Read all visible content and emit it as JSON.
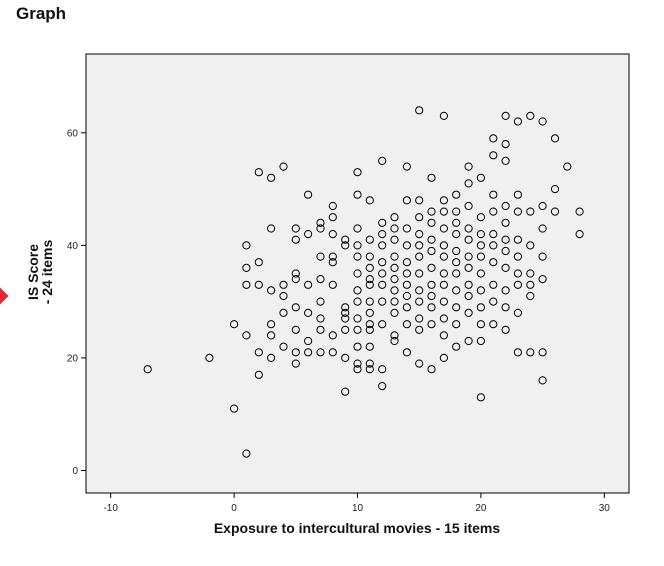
{
  "page": {
    "heading": "Graph",
    "marker_color": "#e8262e"
  },
  "chart_data": {
    "type": "scatter",
    "title": "",
    "xlabel": "Exposure to intercultural movies - 15 items",
    "ylabel_lines": [
      "IS Score",
      "- 24 items"
    ],
    "xlim": [
      -12,
      32
    ],
    "ylim": [
      -4,
      74
    ],
    "xticks": [
      -10,
      0,
      10,
      20,
      30
    ],
    "yticks": [
      0,
      20,
      40,
      60
    ],
    "grid": false,
    "plot_background": "#f0f0f0",
    "marker": "open-circle",
    "points": [
      [
        -7,
        18
      ],
      [
        -2,
        20
      ],
      [
        0,
        11
      ],
      [
        0,
        26
      ],
      [
        1,
        3
      ],
      [
        1,
        24
      ],
      [
        1,
        33
      ],
      [
        1,
        36
      ],
      [
        1,
        40
      ],
      [
        2,
        17
      ],
      [
        2,
        21
      ],
      [
        2,
        33
      ],
      [
        2,
        37
      ],
      [
        2,
        53
      ],
      [
        3,
        20
      ],
      [
        3,
        24
      ],
      [
        3,
        26
      ],
      [
        3,
        32
      ],
      [
        3,
        43
      ],
      [
        3,
        52
      ],
      [
        4,
        22
      ],
      [
        4,
        28
      ],
      [
        4,
        31
      ],
      [
        4,
        33
      ],
      [
        4,
        54
      ],
      [
        5,
        19
      ],
      [
        5,
        21
      ],
      [
        5,
        25
      ],
      [
        5,
        29
      ],
      [
        5,
        34
      ],
      [
        5,
        35
      ],
      [
        5,
        41
      ],
      [
        5,
        43
      ],
      [
        6,
        21
      ],
      [
        6,
        23
      ],
      [
        6,
        28
      ],
      [
        6,
        33
      ],
      [
        6,
        42
      ],
      [
        6,
        49
      ],
      [
        7,
        21
      ],
      [
        7,
        25
      ],
      [
        7,
        27
      ],
      [
        7,
        30
      ],
      [
        7,
        34
      ],
      [
        7,
        38
      ],
      [
        7,
        43
      ],
      [
        7,
        44
      ],
      [
        8,
        21
      ],
      [
        8,
        24
      ],
      [
        8,
        33
      ],
      [
        8,
        37
      ],
      [
        8,
        38
      ],
      [
        8,
        42
      ],
      [
        8,
        45
      ],
      [
        8,
        47
      ],
      [
        9,
        14
      ],
      [
        9,
        20
      ],
      [
        9,
        25
      ],
      [
        9,
        27
      ],
      [
        9,
        28
      ],
      [
        9,
        29
      ],
      [
        9,
        40
      ],
      [
        9,
        41
      ],
      [
        10,
        18
      ],
      [
        10,
        19
      ],
      [
        10,
        22
      ],
      [
        10,
        25
      ],
      [
        10,
        27
      ],
      [
        10,
        30
      ],
      [
        10,
        32
      ],
      [
        10,
        35
      ],
      [
        10,
        38
      ],
      [
        10,
        40
      ],
      [
        10,
        43
      ],
      [
        10,
        49
      ],
      [
        10,
        53
      ],
      [
        11,
        18
      ],
      [
        11,
        19
      ],
      [
        11,
        22
      ],
      [
        11,
        25
      ],
      [
        11,
        26
      ],
      [
        11,
        28
      ],
      [
        11,
        30
      ],
      [
        11,
        33
      ],
      [
        11,
        34
      ],
      [
        11,
        36
      ],
      [
        11,
        38
      ],
      [
        11,
        41
      ],
      [
        11,
        48
      ],
      [
        12,
        15
      ],
      [
        12,
        18
      ],
      [
        12,
        26
      ],
      [
        12,
        30
      ],
      [
        12,
        33
      ],
      [
        12,
        35
      ],
      [
        12,
        37
      ],
      [
        12,
        40
      ],
      [
        12,
        42
      ],
      [
        12,
        44
      ],
      [
        12,
        55
      ],
      [
        13,
        23
      ],
      [
        13,
        24
      ],
      [
        13,
        28
      ],
      [
        13,
        30
      ],
      [
        13,
        32
      ],
      [
        13,
        34
      ],
      [
        13,
        36
      ],
      [
        13,
        38
      ],
      [
        13,
        41
      ],
      [
        13,
        43
      ],
      [
        13,
        45
      ],
      [
        14,
        21
      ],
      [
        14,
        26
      ],
      [
        14,
        29
      ],
      [
        14,
        31
      ],
      [
        14,
        33
      ],
      [
        14,
        35
      ],
      [
        14,
        37
      ],
      [
        14,
        40
      ],
      [
        14,
        43
      ],
      [
        14,
        48
      ],
      [
        14,
        54
      ],
      [
        15,
        19
      ],
      [
        15,
        25
      ],
      [
        15,
        27
      ],
      [
        15,
        30
      ],
      [
        15,
        32
      ],
      [
        15,
        35
      ],
      [
        15,
        38
      ],
      [
        15,
        40
      ],
      [
        15,
        42
      ],
      [
        15,
        45
      ],
      [
        15,
        48
      ],
      [
        15,
        64
      ],
      [
        16,
        18
      ],
      [
        16,
        26
      ],
      [
        16,
        29
      ],
      [
        16,
        31
      ],
      [
        16,
        33
      ],
      [
        16,
        36
      ],
      [
        16,
        39
      ],
      [
        16,
        41
      ],
      [
        16,
        44
      ],
      [
        16,
        46
      ],
      [
        16,
        52
      ],
      [
        17,
        20
      ],
      [
        17,
        24
      ],
      [
        17,
        27
      ],
      [
        17,
        30
      ],
      [
        17,
        33
      ],
      [
        17,
        35
      ],
      [
        17,
        38
      ],
      [
        17,
        40
      ],
      [
        17,
        43
      ],
      [
        17,
        46
      ],
      [
        17,
        48
      ],
      [
        17,
        63
      ],
      [
        18,
        22
      ],
      [
        18,
        26
      ],
      [
        18,
        29
      ],
      [
        18,
        32
      ],
      [
        18,
        35
      ],
      [
        18,
        37
      ],
      [
        18,
        39
      ],
      [
        18,
        42
      ],
      [
        18,
        44
      ],
      [
        18,
        46
      ],
      [
        18,
        49
      ],
      [
        19,
        23
      ],
      [
        19,
        28
      ],
      [
        19,
        31
      ],
      [
        19,
        33
      ],
      [
        19,
        36
      ],
      [
        19,
        38
      ],
      [
        19,
        41
      ],
      [
        19,
        43
      ],
      [
        19,
        47
      ],
      [
        19,
        51
      ],
      [
        19,
        54
      ],
      [
        20,
        13
      ],
      [
        20,
        23
      ],
      [
        20,
        26
      ],
      [
        20,
        29
      ],
      [
        20,
        32
      ],
      [
        20,
        35
      ],
      [
        20,
        38
      ],
      [
        20,
        40
      ],
      [
        20,
        42
      ],
      [
        20,
        45
      ],
      [
        20,
        52
      ],
      [
        21,
        26
      ],
      [
        21,
        30
      ],
      [
        21,
        33
      ],
      [
        21,
        37
      ],
      [
        21,
        40
      ],
      [
        21,
        42
      ],
      [
        21,
        46
      ],
      [
        21,
        49
      ],
      [
        21,
        56
      ],
      [
        21,
        59
      ],
      [
        22,
        25
      ],
      [
        22,
        29
      ],
      [
        22,
        32
      ],
      [
        22,
        36
      ],
      [
        22,
        39
      ],
      [
        22,
        41
      ],
      [
        22,
        44
      ],
      [
        22,
        47
      ],
      [
        22,
        55
      ],
      [
        22,
        58
      ],
      [
        22,
        63
      ],
      [
        23,
        21
      ],
      [
        23,
        28
      ],
      [
        23,
        33
      ],
      [
        23,
        35
      ],
      [
        23,
        38
      ],
      [
        23,
        41
      ],
      [
        23,
        46
      ],
      [
        23,
        49
      ],
      [
        23,
        62
      ],
      [
        24,
        21
      ],
      [
        24,
        31
      ],
      [
        24,
        33
      ],
      [
        24,
        35
      ],
      [
        24,
        40
      ],
      [
        24,
        46
      ],
      [
        24,
        63
      ],
      [
        25,
        16
      ],
      [
        25,
        21
      ],
      [
        25,
        34
      ],
      [
        25,
        38
      ],
      [
        25,
        43
      ],
      [
        25,
        47
      ],
      [
        25,
        62
      ],
      [
        26,
        46
      ],
      [
        26,
        50
      ],
      [
        26,
        59
      ],
      [
        27,
        54
      ],
      [
        28,
        42
      ],
      [
        28,
        46
      ]
    ]
  }
}
